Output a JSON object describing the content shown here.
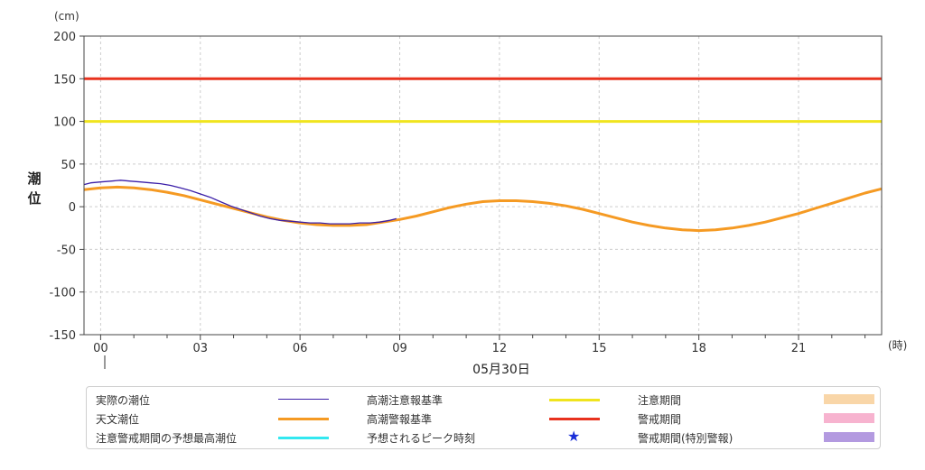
{
  "chart_data": {
    "type": "line",
    "unit_label": "(cm)",
    "ylabel": "潮位",
    "x_unit_label": "(時)",
    "date_label": "05月30日",
    "x_range_hours": [
      -0.5,
      23.5
    ],
    "ylim": [
      -150,
      200
    ],
    "yticks": [
      200,
      150,
      100,
      50,
      0,
      -50,
      -100,
      -150
    ],
    "xticks": [
      {
        "hour": 0,
        "label": "00"
      },
      {
        "hour": 3,
        "label": "03"
      },
      {
        "hour": 6,
        "label": "06"
      },
      {
        "hour": 9,
        "label": "09"
      },
      {
        "hour": 12,
        "label": "12"
      },
      {
        "hour": 15,
        "label": "15"
      },
      {
        "hour": 18,
        "label": "18"
      },
      {
        "hour": 21,
        "label": "21"
      }
    ],
    "grid": true,
    "legend_placement": "bottom",
    "series": [
      {
        "name": "実際の潮位",
        "color": "#3b1fa8",
        "x": [
          -0.6,
          -0.3,
          0,
          0.3,
          0.6,
          0.9,
          1.2,
          1.5,
          1.8,
          2.1,
          2.4,
          2.7,
          3,
          3.3,
          3.6,
          3.9,
          4.2,
          4.5,
          4.8,
          5.1,
          5.4,
          5.7,
          6,
          6.3,
          6.6,
          6.9,
          7.2,
          7.5,
          7.8,
          8.1,
          8.4,
          8.7,
          8.9
        ],
        "y": [
          26,
          28,
          29,
          30,
          31,
          30,
          29,
          28,
          27,
          25,
          22,
          19,
          15,
          11,
          6,
          1,
          -3,
          -7,
          -11,
          -14,
          -16,
          -17,
          -18,
          -19,
          -19,
          -20,
          -20,
          -20,
          -19,
          -19,
          -18,
          -16,
          -14
        ]
      },
      {
        "name": "天文潮位",
        "color": "#f59a23",
        "x": [
          -0.6,
          0,
          0.5,
          1,
          1.5,
          2,
          2.5,
          3,
          3.5,
          4,
          4.5,
          5,
          5.5,
          6,
          6.5,
          7,
          7.5,
          8,
          8.5,
          9,
          9.5,
          10,
          10.5,
          11,
          11.5,
          12,
          12.5,
          13,
          13.5,
          14,
          14.5,
          15,
          15.5,
          16,
          16.5,
          17,
          17.5,
          18,
          18.5,
          19,
          19.5,
          20,
          20.5,
          21,
          21.5,
          22,
          22.5,
          23,
          23.5
        ],
        "y": [
          20,
          22,
          23,
          22,
          20,
          17,
          13,
          8,
          3,
          -2,
          -7,
          -12,
          -16,
          -19,
          -21,
          -22,
          -22,
          -21,
          -18,
          -15,
          -11,
          -6,
          -1,
          3,
          6,
          7,
          7,
          6,
          4,
          1,
          -3,
          -8,
          -13,
          -18,
          -22,
          -25,
          -27,
          -28,
          -27,
          -25,
          -22,
          -18,
          -13,
          -8,
          -2,
          4,
          10,
          16,
          21
        ]
      },
      {
        "name": "高潮注意報基準",
        "color": "#f0e41e",
        "y_const": 100
      },
      {
        "name": "高潮警報基準",
        "color": "#e8321e",
        "y_const": 150
      }
    ]
  },
  "legend": {
    "items": [
      {
        "label": "実際の潮位",
        "kind": "line",
        "color": "#3b1fa8"
      },
      {
        "label": "天文潮位",
        "kind": "line",
        "color": "#f59a23"
      },
      {
        "label": "注意警戒期間の予想最高潮位",
        "kind": "line",
        "color": "#33e8f0"
      },
      {
        "label": "高潮注意報基準",
        "kind": "line",
        "color": "#f0e41e"
      },
      {
        "label": "高潮警報基準",
        "kind": "line",
        "color": "#e8321e"
      },
      {
        "label": "予想されるピーク時刻",
        "kind": "star",
        "color": "#1a2fd8",
        "symbol": "★"
      },
      {
        "label": "注意期間",
        "kind": "box",
        "color": "#f9d6a8"
      },
      {
        "label": "警戒期間",
        "kind": "box",
        "color": "#f7b3cf"
      },
      {
        "label": "警戒期間(特別警報)",
        "kind": "box",
        "color": "#b39ae0"
      }
    ]
  }
}
